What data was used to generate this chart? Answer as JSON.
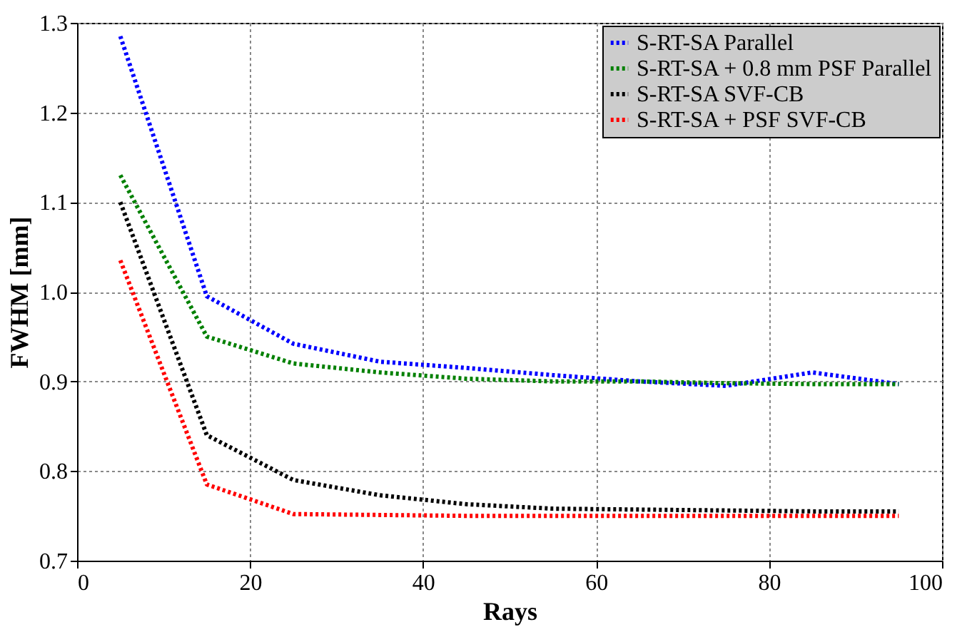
{
  "chart_data": {
    "type": "line",
    "xlabel": "Rays",
    "ylabel": "FWHM [mm]",
    "x": [
      5,
      15,
      25,
      35,
      45,
      55,
      65,
      75,
      85,
      95
    ],
    "series": [
      {
        "name": "S-RT-SA Parallel",
        "color": "#0000ff",
        "values": [
          1.285,
          0.995,
          0.942,
          0.922,
          0.915,
          0.907,
          0.9,
          0.895,
          0.91,
          0.897
        ]
      },
      {
        "name": "S-RT-SA + 0.8 mm PSF Parallel",
        "color": "#008000",
        "values": [
          1.13,
          0.95,
          0.92,
          0.91,
          0.903,
          0.9,
          0.9,
          0.898,
          0.897,
          0.897
        ]
      },
      {
        "name": "S-RT-SA SVF-CB",
        "color": "#000000",
        "values": [
          1.1,
          0.84,
          0.79,
          0.773,
          0.763,
          0.758,
          0.757,
          0.756,
          0.755,
          0.755
        ]
      },
      {
        "name": "S-RT-SA + PSF SVF-CB",
        "color": "#ff0000",
        "values": [
          1.035,
          0.785,
          0.752,
          0.751,
          0.75,
          0.75,
          0.75,
          0.75,
          0.75,
          0.75
        ]
      }
    ],
    "xlim": [
      0,
      100
    ],
    "xticks": [
      0,
      20,
      40,
      60,
      80,
      100
    ],
    "ylim": [
      0.7,
      1.3
    ],
    "yticks": [
      0.7,
      0.8,
      0.9,
      {
        "value": 1,
        "label": "1.0"
      },
      1.1,
      1.2,
      1.3
    ],
    "grid": true,
    "legend": "top right",
    "line_style": "dotted",
    "marker": "none"
  }
}
